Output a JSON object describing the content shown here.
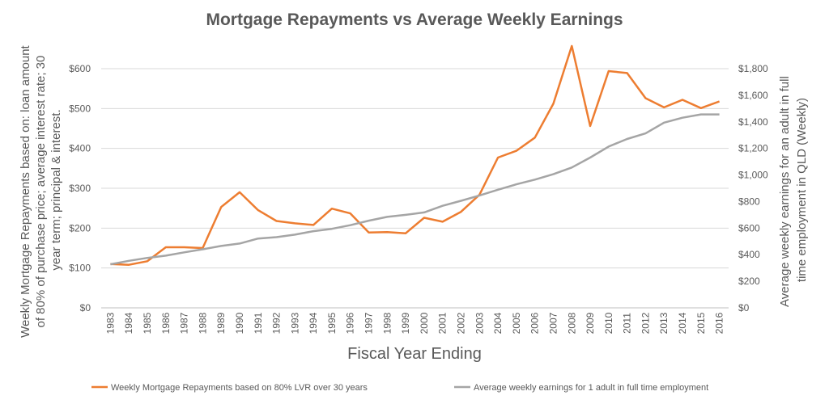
{
  "chart_data": {
    "type": "line",
    "title": "Mortgage Repayments vs Average Weekly Earnings",
    "xlabel": "Fiscal Year Ending",
    "ylabel": "Weekly Mortgage Repayments based on: loan amount of 80% of purchase price; average interest rate; 30 year term; principal & interest.",
    "y2label": "Average weekly earnings for an adult in full time employment in QLD (Weekly)",
    "categories": [
      "1983",
      "1984",
      "1985",
      "1986",
      "1987",
      "1988",
      "1989",
      "1990",
      "1991",
      "1992",
      "1993",
      "1994",
      "1995",
      "1996",
      "1997",
      "1998",
      "1999",
      "2000",
      "2001",
      "2002",
      "2003",
      "2004",
      "2005",
      "2006",
      "2007",
      "2008",
      "2009",
      "2010",
      "2011",
      "2012",
      "2013",
      "2014",
      "2015",
      "2016"
    ],
    "ylim": [
      0,
      600
    ],
    "y2lim": [
      0,
      1800
    ],
    "yticks": [
      "$0",
      "$100",
      "$200",
      "$300",
      "$400",
      "$500",
      "$600"
    ],
    "y2ticks": [
      "$0",
      "$200",
      "$400",
      "$600",
      "$800",
      "$1,000",
      "$1,200",
      "$1,400",
      "$1,600",
      "$1,800"
    ],
    "grid": true,
    "legend_position": "bottom",
    "series": [
      {
        "name": "Weekly Mortgage Repayments based on 80% LVR over 30 years",
        "color": "#ED7D31",
        "axis": "left",
        "values": [
          110,
          108,
          117,
          152,
          152,
          150,
          253,
          290,
          245,
          218,
          212,
          208,
          249,
          237,
          189,
          190,
          187,
          226,
          216,
          241,
          284,
          377,
          394,
          427,
          512,
          657,
          456,
          594,
          589,
          526,
          503,
          522,
          501,
          518
        ]
      },
      {
        "name": "Average weekly earnings for 1 adult in full time employment",
        "color": "#A5A5A5",
        "axis": "right",
        "values": [
          328,
          354,
          376,
          393,
          418,
          441,
          466,
          484,
          522,
          532,
          551,
          577,
          595,
          622,
          656,
          685,
          700,
          718,
          768,
          806,
          846,
          889,
          930,
          965,
          1006,
          1056,
          1131,
          1214,
          1271,
          1313,
          1394,
          1431,
          1456,
          1456
        ]
      }
    ]
  }
}
